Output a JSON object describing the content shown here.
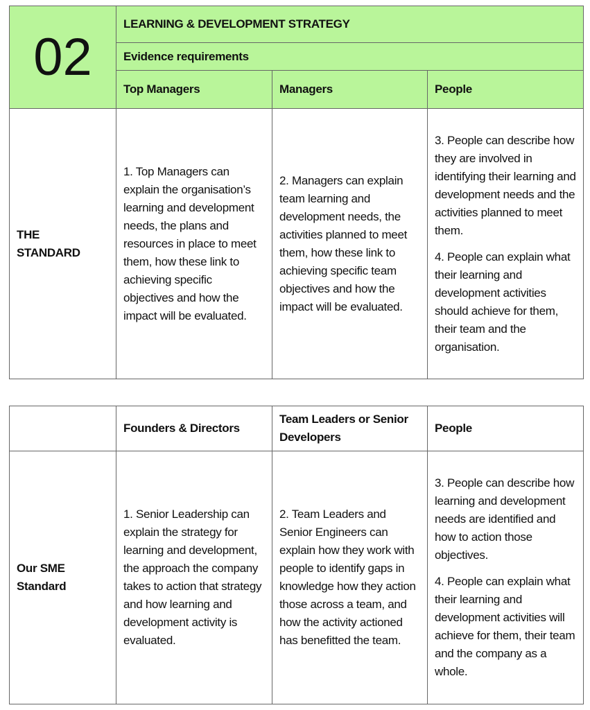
{
  "table1": {
    "number": "02",
    "title": "LEARNING & DEVELOPMENT STRATEGY",
    "subtitle": "Evidence requirements",
    "headers": [
      "Top Managers",
      "Managers",
      "People"
    ],
    "row_label": "THE STANDARD",
    "cells": [
      [
        "1. Top Managers can explain the organisation’s learning and development needs, the plans and resources in place to meet them, how these link to achieving specific objectives and how the impact will be evaluated."
      ],
      [
        "2. Managers can explain team learning and development needs, the activities planned to meet them, how these link to achieving specific team objectives and how the impact will be evaluated."
      ],
      [
        "3. People can describe how they are involved in identifying their learning and development needs and the activities planned to meet them.",
        "4. People can explain what their learning and development activities should achieve for them, their team and the organisation."
      ]
    ],
    "header_color": "#b9f59a"
  },
  "table2": {
    "headers": [
      "Founders & Directors",
      "Team Leaders or Senior Developers",
      "People"
    ],
    "row_label": "Our SME Standard",
    "cells": [
      [
        "1. Senior Leadership can explain the strategy for learning and development, the approach the company takes to action that strategy and how learning and development activity is evaluated."
      ],
      [
        "2. Team Leaders and Senior Engineers can explain how they work with people to identify gaps in knowledge how they action those across a team, and how the activity actioned has benefitted the team."
      ],
      [
        "3. People can describe how learning and development needs are identified and how to action those objectives.",
        "4. People can explain what their learning and development activities will achieve for them, their team and the company as a whole."
      ]
    ]
  }
}
